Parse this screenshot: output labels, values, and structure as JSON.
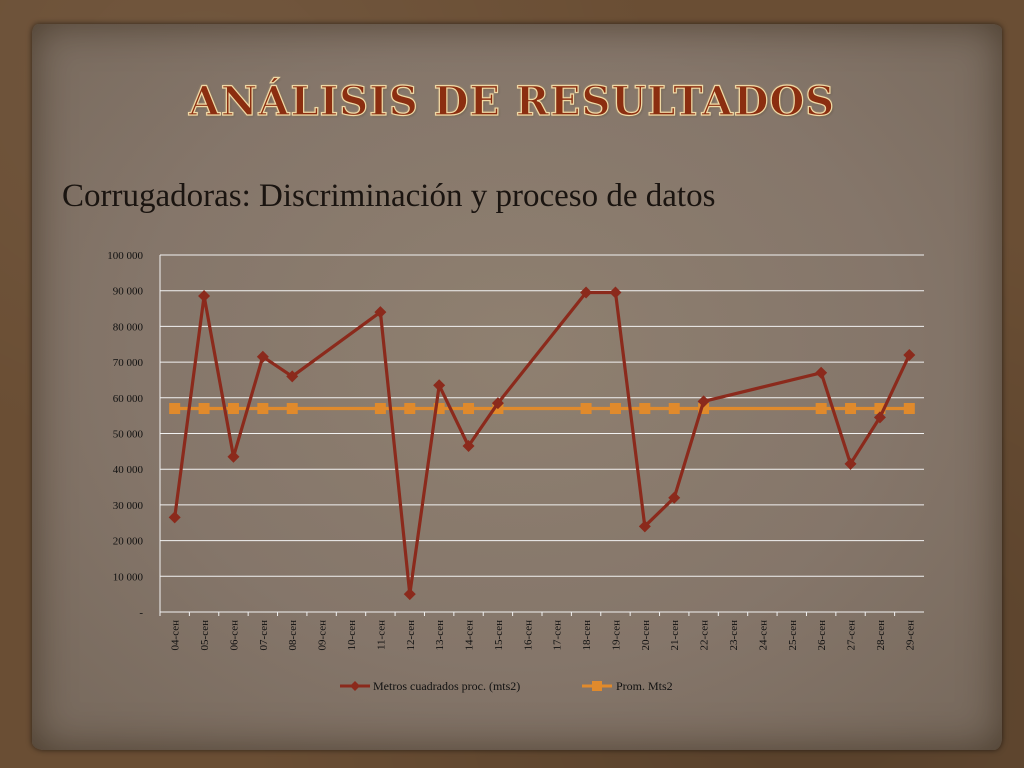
{
  "slide": {
    "title": "ANÁLISIS DE RESULTADOS",
    "subtitle": "Corrugadoras: Discriminación y proceso de datos"
  },
  "colors": {
    "series_main": "#8b2a1c",
    "series_avg": "#e08a2c",
    "gridline": "#f2f2f2"
  },
  "chart_data": {
    "type": "line",
    "title": "",
    "xlabel": "",
    "ylabel": "",
    "ylim": [
      0,
      100000
    ],
    "y_ticks": [
      "-",
      "10 000",
      "20 000",
      "30 000",
      "40 000",
      "50 000",
      "60 000",
      "70 000",
      "80 000",
      "90 000",
      "100 000"
    ],
    "grid": true,
    "legend_position": "bottom",
    "categories": [
      "04-сен",
      "05-сен",
      "06-сен",
      "07-сен",
      "08-сен",
      "09-сен",
      "10-сен",
      "11-сен",
      "12-сен",
      "13-сен",
      "14-сен",
      "15-сен",
      "16-сен",
      "17-сен",
      "18-сен",
      "19-сен",
      "20-сен",
      "21-сен",
      "22-сен",
      "23-сен",
      "24-сен",
      "25-сен",
      "26-сен",
      "27-сен",
      "28-сен",
      "29-сен"
    ],
    "series": [
      {
        "name": "Metros cuadrados proc. (mts2)",
        "marker": "diamond",
        "values": [
          26500,
          88500,
          43500,
          71500,
          66000,
          null,
          null,
          84000,
          5000,
          63500,
          46500,
          58500,
          null,
          null,
          89500,
          89500,
          24000,
          32000,
          59000,
          null,
          null,
          null,
          67000,
          41500,
          54500,
          72000
        ]
      },
      {
        "name": "Prom. Mts2",
        "marker": "square",
        "values": [
          57000,
          57000,
          57000,
          57000,
          57000,
          null,
          null,
          57000,
          57000,
          57000,
          57000,
          57000,
          null,
          null,
          57000,
          57000,
          57000,
          57000,
          57000,
          null,
          null,
          null,
          57000,
          57000,
          57000,
          57000
        ]
      }
    ]
  }
}
